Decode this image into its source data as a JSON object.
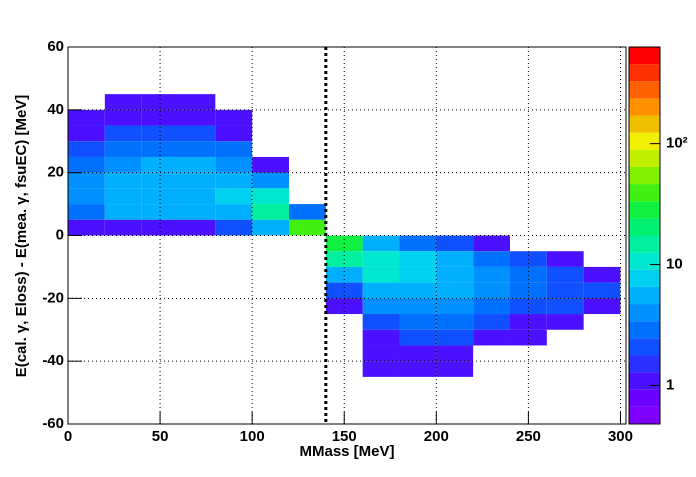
{
  "chart_data": {
    "type": "heatmap",
    "x_label": "MMass [MeV]",
    "y_label": "E(cal. γ, Eloss) - E(mea.  γ, fsuEC) [MeV]",
    "x_bins": [
      0,
      20,
      40,
      60,
      80,
      100,
      120,
      140,
      160,
      180,
      200,
      220,
      240,
      260,
      280,
      300
    ],
    "y_bins": [
      60,
      55,
      50,
      45,
      40,
      35,
      30,
      25,
      20,
      15,
      10,
      5,
      0,
      -5,
      -10,
      -15,
      -20,
      -25,
      -30,
      -35,
      -40,
      -45,
      -50,
      -55,
      -60
    ],
    "values": [
      [
        0,
        0,
        0,
        0,
        0,
        0,
        0,
        0,
        0,
        0,
        0,
        0,
        0,
        0,
        0
      ],
      [
        0,
        0,
        0,
        0,
        0,
        0,
        0,
        0,
        0,
        0,
        0,
        0,
        0,
        0,
        0
      ],
      [
        0,
        0,
        0,
        0,
        0,
        0,
        0,
        0,
        0,
        0,
        0,
        0,
        0,
        0,
        0
      ],
      [
        0,
        1,
        1,
        1,
        0,
        0,
        0,
        0,
        0,
        0,
        0,
        0,
        0,
        0,
        0
      ],
      [
        1,
        1,
        1,
        1,
        1,
        0,
        0,
        0,
        0,
        0,
        0,
        0,
        0,
        0,
        0
      ],
      [
        1,
        2,
        2,
        2,
        1,
        0,
        0,
        0,
        0,
        0,
        0,
        0,
        0,
        0,
        0
      ],
      [
        2,
        3,
        3,
        3,
        3,
        0,
        0,
        0,
        0,
        0,
        0,
        0,
        0,
        0,
        0
      ],
      [
        3,
        4,
        5,
        5,
        4,
        1,
        0,
        0,
        0,
        0,
        0,
        0,
        0,
        0,
        0
      ],
      [
        4,
        5,
        6,
        6,
        6,
        4,
        0,
        0,
        0,
        0,
        0,
        0,
        0,
        0,
        0
      ],
      [
        4,
        6,
        6,
        6,
        7,
        12,
        0,
        0,
        0,
        0,
        0,
        0,
        0,
        0,
        0
      ],
      [
        3,
        5,
        5,
        5,
        6,
        15,
        3,
        0,
        0,
        0,
        0,
        0,
        0,
        0,
        0
      ],
      [
        1,
        1,
        1,
        1,
        2,
        6,
        40,
        0,
        0,
        0,
        0,
        0,
        0,
        0,
        0
      ],
      [
        0,
        0,
        0,
        0,
        0,
        0,
        0,
        30,
        6,
        3,
        2,
        1,
        0,
        0,
        0
      ],
      [
        0,
        0,
        0,
        0,
        0,
        0,
        0,
        15,
        12,
        8,
        5,
        3,
        2,
        1,
        0
      ],
      [
        0,
        0,
        0,
        0,
        0,
        0,
        0,
        6,
        10,
        8,
        6,
        4,
        3,
        2,
        1
      ],
      [
        0,
        0,
        0,
        0,
        0,
        0,
        0,
        2,
        6,
        6,
        5,
        4,
        3,
        2,
        2
      ],
      [
        0,
        0,
        0,
        0,
        0,
        0,
        0,
        1,
        4,
        4,
        4,
        3,
        2,
        2,
        1
      ],
      [
        0,
        0,
        0,
        0,
        0,
        0,
        0,
        0,
        2,
        3,
        3,
        2,
        1,
        1,
        0
      ],
      [
        0,
        0,
        0,
        0,
        0,
        0,
        0,
        0,
        1,
        2,
        2,
        1,
        1,
        0,
        0
      ],
      [
        0,
        0,
        0,
        0,
        0,
        0,
        0,
        0,
        1,
        1,
        1,
        0,
        0,
        0,
        0
      ],
      [
        0,
        0,
        0,
        0,
        0,
        0,
        0,
        0,
        1,
        1,
        1,
        0,
        0,
        0,
        0
      ],
      [
        0,
        0,
        0,
        0,
        0,
        0,
        0,
        0,
        0,
        0,
        0,
        0,
        0,
        0,
        0
      ],
      [
        0,
        0,
        0,
        0,
        0,
        0,
        0,
        0,
        0,
        0,
        0,
        0,
        0,
        0,
        0
      ],
      [
        0,
        0,
        0,
        0,
        0,
        0,
        0,
        0,
        0,
        0,
        0,
        0,
        0,
        0,
        0
      ]
    ],
    "xlim": [
      0,
      303
    ],
    "ylim": [
      -60,
      60
    ],
    "xticks": [
      0,
      50,
      100,
      150,
      200,
      250,
      300
    ],
    "yticks": [
      -60,
      -40,
      -20,
      0,
      20,
      40,
      60
    ],
    "zlim": [
      0.48,
      630
    ],
    "zticks": [
      1,
      10,
      {
        "value": 100,
        "label": "10²"
      }
    ],
    "zlog": true,
    "grid": true,
    "vline": 140,
    "palette": [
      "#8000ff",
      "#6a00ff",
      "#4a10ff",
      "#2a30ff",
      "#1050ff",
      "#0070ff",
      "#0090ff",
      "#00b0ff",
      "#00d0f0",
      "#00e8d0",
      "#00f0a0",
      "#00f070",
      "#10f040",
      "#40f010",
      "#80f000",
      "#c0f000",
      "#f0f000",
      "#f0c000",
      "#ff9000",
      "#ff6000",
      "#ff3000",
      "#ff0000"
    ]
  }
}
